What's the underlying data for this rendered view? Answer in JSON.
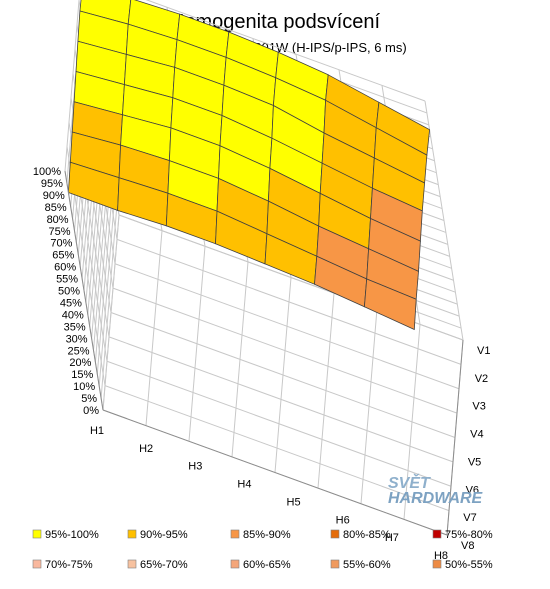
{
  "chart_data": {
    "type": "surface",
    "title": "Homogenita podsvícení",
    "subtitle": "NEC MultySync PA301W (H-IPS/p-IPS, 6 ms)",
    "h_categories": [
      "H1",
      "H2",
      "H3",
      "H4",
      "H5",
      "H6",
      "H7",
      "H8"
    ],
    "v_categories": [
      "V1",
      "V2",
      "V3",
      "V4",
      "V5",
      "V6",
      "V7",
      "V8"
    ],
    "z_ticks": [
      "0%",
      "5%",
      "10%",
      "15%",
      "20%",
      "25%",
      "30%",
      "35%",
      "40%",
      "45%",
      "50%",
      "55%",
      "60%",
      "65%",
      "70%",
      "75%",
      "80%",
      "85%",
      "90%",
      "95%",
      "100%"
    ],
    "zlim": [
      0,
      100
    ],
    "values": [
      [
        96,
        98,
        99,
        99,
        98,
        96,
        92,
        88
      ],
      [
        97,
        99,
        100,
        100,
        99,
        97,
        93,
        89
      ],
      [
        96,
        98,
        100,
        100,
        99,
        95,
        92,
        89
      ],
      [
        95,
        97,
        99,
        99,
        97,
        94,
        91,
        89
      ],
      [
        94,
        96,
        98,
        98,
        96,
        93,
        90,
        88
      ],
      [
        93,
        95,
        96,
        96,
        94,
        91,
        89,
        87
      ],
      [
        92,
        93,
        94,
        94,
        92,
        90,
        88,
        87
      ],
      [
        91,
        91,
        92,
        92,
        91,
        90,
        88,
        86
      ]
    ],
    "legend": [
      {
        "label": "95%-100%",
        "color": "#ffff00"
      },
      {
        "label": "90%-95%",
        "color": "#ffc000"
      },
      {
        "label": "85%-90%",
        "color": "#f79646"
      },
      {
        "label": "80%-85%",
        "color": "#e46c0a"
      },
      {
        "label": "75%-80%",
        "color": "#c00000"
      },
      {
        "label": "70%-75%",
        "color": "#f9b89e"
      },
      {
        "label": "65%-70%",
        "color": "#f7c2a0"
      },
      {
        "label": "60%-65%",
        "color": "#f4a67a"
      },
      {
        "label": "55%-60%",
        "color": "#f09a5e"
      },
      {
        "label": "50%-55%",
        "color": "#ed8b44"
      }
    ],
    "legend_position": "bottom"
  },
  "watermark": {
    "line1": "SVĚT",
    "line2": "HARDWARE"
  }
}
